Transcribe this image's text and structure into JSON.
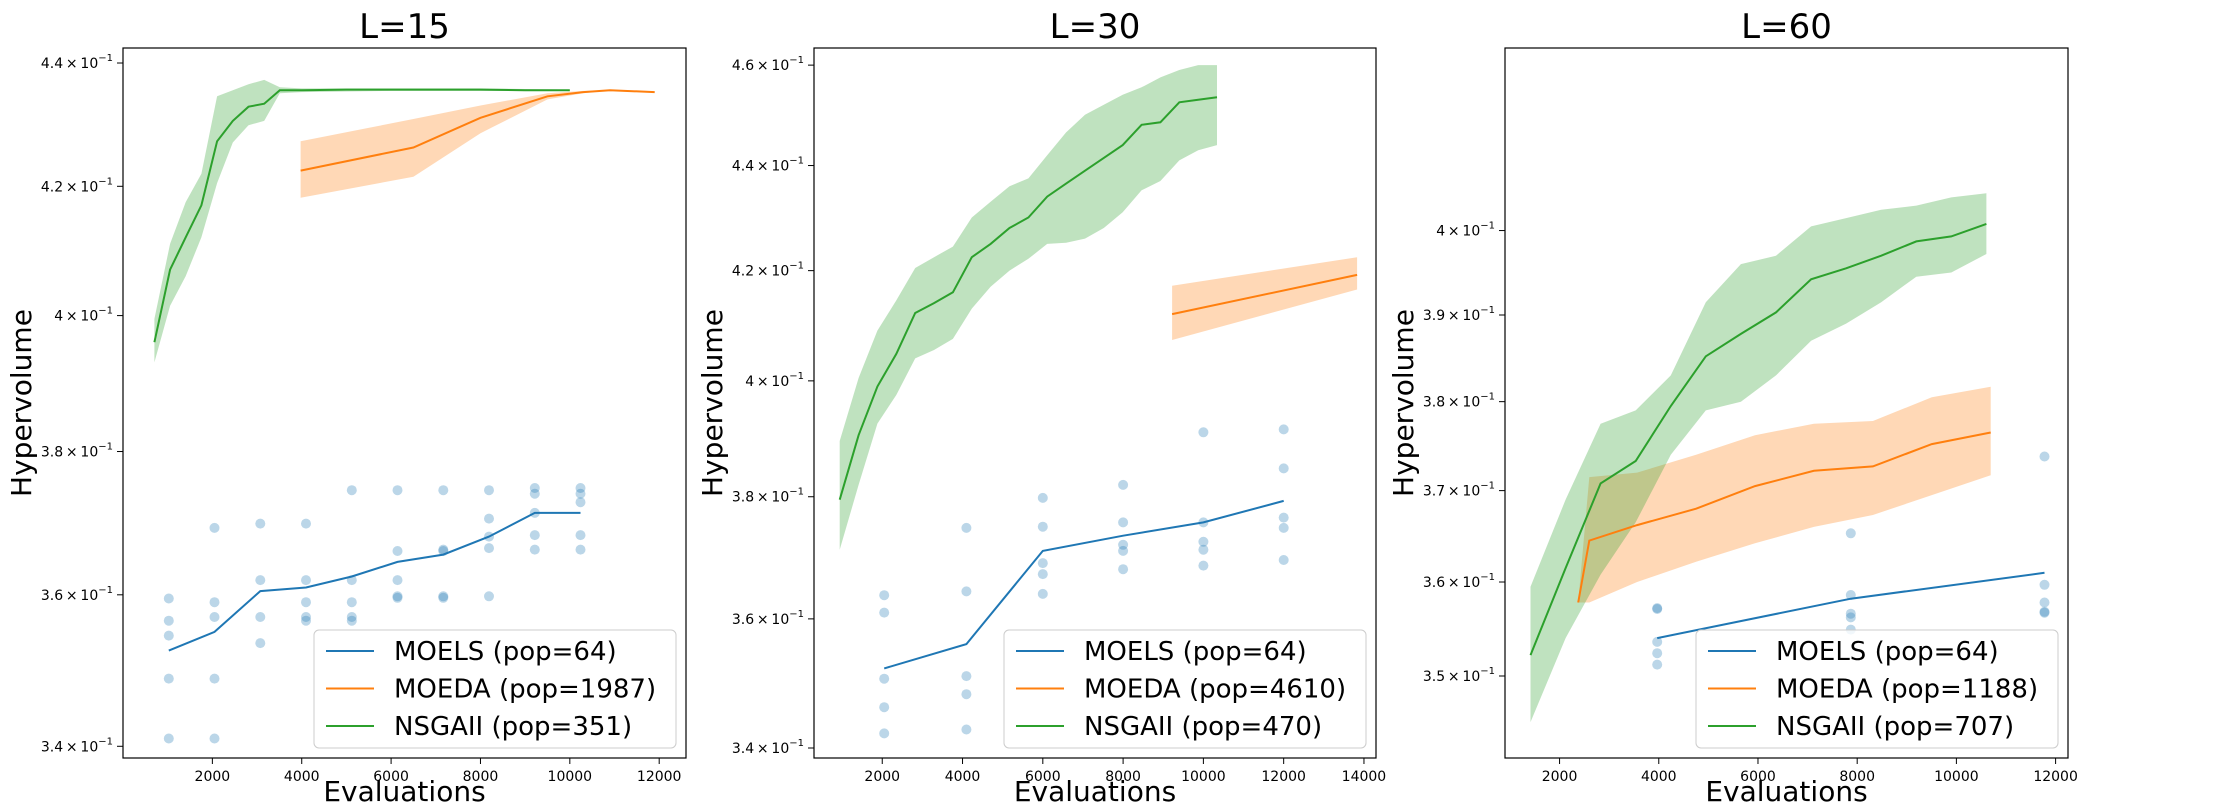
{
  "chart_data": [
    {
      "type": "line",
      "title": "L=15",
      "xlabel": "Evaluations",
      "ylabel": "Hypervolume",
      "yscale": "log",
      "xlim": [
        0,
        12600
      ],
      "ylim": [
        0.3385,
        0.4425
      ],
      "xticks": [
        2000,
        4000,
        6000,
        8000,
        10000,
        12000
      ],
      "yticks": [
        {
          "value": 0.34,
          "label_base": "3.4 × 10",
          "label_exp": "−1"
        },
        {
          "value": 0.36,
          "label_base": "3.6 × 10",
          "label_exp": "−1"
        },
        {
          "value": 0.38,
          "label_base": "3.8 × 10",
          "label_exp": "−1"
        },
        {
          "value": 0.4,
          "label_base": "4 × 10",
          "label_exp": "−1"
        },
        {
          "value": 0.42,
          "label_base": "4.2 × 10",
          "label_exp": "−1"
        },
        {
          "value": 0.44,
          "label_base": "4.4 × 10",
          "label_exp": "−1"
        }
      ],
      "legend_placement": "lower right",
      "series": [
        {
          "name": "MOELS (pop=64)",
          "color": "#1f77b4",
          "x": [
            1024,
            2048,
            3072,
            4096,
            5120,
            6144,
            7168,
            8192,
            9216,
            10240
          ],
          "y": [
            0.3525,
            0.355,
            0.3605,
            0.361,
            0.3625,
            0.3645,
            0.3655,
            0.368,
            0.3713,
            0.3713
          ],
          "points": [
            [
              1024,
              0.3595
            ],
            [
              1024,
              0.3565
            ],
            [
              1024,
              0.3545
            ],
            [
              1024,
              0.3488
            ],
            [
              1024,
              0.341
            ],
            [
              2048,
              0.3692
            ],
            [
              2048,
              0.359
            ],
            [
              2048,
              0.357
            ],
            [
              2048,
              0.3488
            ],
            [
              2048,
              0.341
            ],
            [
              3072,
              0.3698
            ],
            [
              3072,
              0.362
            ],
            [
              3072,
              0.357
            ],
            [
              3072,
              0.3535
            ],
            [
              4096,
              0.3698
            ],
            [
              4096,
              0.362
            ],
            [
              4096,
              0.359
            ],
            [
              4096,
              0.357
            ],
            [
              4096,
              0.3565
            ],
            [
              5120,
              0.3745
            ],
            [
              5120,
              0.362
            ],
            [
              5120,
              0.359
            ],
            [
              5120,
              0.357
            ],
            [
              5120,
              0.3565
            ],
            [
              6144,
              0.3745
            ],
            [
              6144,
              0.366
            ],
            [
              6144,
              0.362
            ],
            [
              6144,
              0.3598
            ],
            [
              6144,
              0.3596
            ],
            [
              7168,
              0.3745
            ],
            [
              7168,
              0.3662
            ],
            [
              7168,
              0.366
            ],
            [
              7168,
              0.3598
            ],
            [
              7168,
              0.3596
            ],
            [
              8192,
              0.3745
            ],
            [
              8192,
              0.3705
            ],
            [
              8192,
              0.368
            ],
            [
              8192,
              0.3664
            ],
            [
              8192,
              0.3598
            ],
            [
              9216,
              0.3748
            ],
            [
              9216,
              0.374
            ],
            [
              9216,
              0.3713
            ],
            [
              9216,
              0.3682
            ],
            [
              9216,
              0.3662
            ],
            [
              10240,
              0.3748
            ],
            [
              10240,
              0.374
            ],
            [
              10240,
              0.3728
            ],
            [
              10240,
              0.3682
            ],
            [
              10240,
              0.3662
            ]
          ]
        },
        {
          "name": "MOEDA (pop=1987)",
          "color": "#ff7f0e",
          "x": [
            3974,
            6500,
            8000,
            9500,
            10300,
            10900,
            11900
          ],
          "y": [
            0.4225,
            0.4262,
            0.431,
            0.4345,
            0.4352,
            0.4355,
            0.4352
          ],
          "lower": [
            0.4182,
            0.4215,
            0.4285,
            0.434,
            0.435,
            0.4355,
            0.4352
          ],
          "upper": [
            0.4272,
            0.4308,
            0.433,
            0.435,
            0.4354,
            0.4355,
            0.4352
          ]
        },
        {
          "name": "NSGAII (pop=351)",
          "color": "#2ca02c",
          "x": [
            702,
            1053,
            1404,
            1755,
            2106,
            2457,
            2808,
            3159,
            3510,
            4000,
            5000,
            6000,
            7000,
            8000,
            9000,
            10000
          ],
          "y": [
            0.396,
            0.407,
            0.412,
            0.417,
            0.4272,
            0.4305,
            0.4328,
            0.4333,
            0.4355,
            0.4355,
            0.4356,
            0.4356,
            0.4356,
            0.4356,
            0.4355,
            0.4355
          ],
          "lower": [
            0.393,
            0.4015,
            0.406,
            0.412,
            0.4205,
            0.427,
            0.4298,
            0.4305,
            0.435,
            0.4352,
            0.4353,
            0.4354,
            0.4354,
            0.4354,
            0.4354,
            0.4354
          ],
          "upper": [
            0.3995,
            0.411,
            0.4175,
            0.422,
            0.4345,
            0.4355,
            0.4365,
            0.4372,
            0.436,
            0.4358,
            0.4358,
            0.4358,
            0.4358,
            0.4358,
            0.4357,
            0.4356
          ]
        }
      ]
    },
    {
      "type": "line",
      "title": "L=30",
      "xlabel": "Evaluations",
      "ylabel": "Hypervolume",
      "yscale": "log",
      "xlim": [
        300,
        14300
      ],
      "ylim": [
        0.3385,
        0.4635
      ],
      "xticks": [
        2000,
        4000,
        6000,
        8000,
        10000,
        12000,
        14000
      ],
      "yticks": [
        {
          "value": 0.34,
          "label_base": "3.4 × 10",
          "label_exp": "−1"
        },
        {
          "value": 0.36,
          "label_base": "3.6 × 10",
          "label_exp": "−1"
        },
        {
          "value": 0.38,
          "label_base": "3.8 × 10",
          "label_exp": "−1"
        },
        {
          "value": 0.4,
          "label_base": "4 × 10",
          "label_exp": "−1"
        },
        {
          "value": 0.42,
          "label_base": "4.2 × 10",
          "label_exp": "−1"
        },
        {
          "value": 0.44,
          "label_base": "4.4 × 10",
          "label_exp": "−1"
        },
        {
          "value": 0.46,
          "label_base": "4.6 × 10",
          "label_exp": "−1"
        }
      ],
      "legend_placement": "lower right",
      "series": [
        {
          "name": "MOELS (pop=64)",
          "color": "#1f77b4",
          "x": [
            2048,
            4096,
            6000,
            8000,
            10000,
            12000
          ],
          "y": [
            0.3522,
            0.356,
            0.371,
            0.3735,
            0.3757,
            0.3793
          ],
          "points": [
            [
              2048,
              0.3638
            ],
            [
              2048,
              0.361
            ],
            [
              2048,
              0.3506
            ],
            [
              2048,
              0.3462
            ],
            [
              2048,
              0.3422
            ],
            [
              4096,
              0.3748
            ],
            [
              4096,
              0.3644
            ],
            [
              4096,
              0.351
            ],
            [
              4096,
              0.3482
            ],
            [
              4096,
              0.3428
            ],
            [
              6000,
              0.3798
            ],
            [
              6000,
              0.375
            ],
            [
              6000,
              0.369
            ],
            [
              6000,
              0.3672
            ],
            [
              6000,
              0.364
            ],
            [
              8000,
              0.382
            ],
            [
              8000,
              0.3757
            ],
            [
              8000,
              0.372
            ],
            [
              8000,
              0.371
            ],
            [
              8000,
              0.368
            ],
            [
              10000,
              0.391
            ],
            [
              10000,
              0.3757
            ],
            [
              10000,
              0.3725
            ],
            [
              10000,
              0.3712
            ],
            [
              10000,
              0.3686
            ],
            [
              12000,
              0.3915
            ],
            [
              12000,
              0.3848
            ],
            [
              12000,
              0.3765
            ],
            [
              12000,
              0.3748
            ],
            [
              12000,
              0.3695
            ]
          ]
        },
        {
          "name": "MOEDA (pop=4610)",
          "color": "#ff7f0e",
          "x": [
            9220,
            13830
          ],
          "y": [
            0.412,
            0.4192
          ],
          "lower": [
            0.4073,
            0.4165
          ],
          "upper": [
            0.4172,
            0.4225
          ]
        },
        {
          "name": "NSGAII (pop=470)",
          "color": "#2ca02c",
          "x": [
            940,
            1410,
            1880,
            2350,
            2820,
            3290,
            3760,
            4230,
            4700,
            5170,
            5640,
            6110,
            6580,
            7050,
            7520,
            7990,
            8460,
            8930,
            9400,
            9870,
            10340
          ],
          "y": [
            0.3795,
            0.3905,
            0.399,
            0.4048,
            0.4122,
            0.414,
            0.416,
            0.4225,
            0.425,
            0.428,
            0.43,
            0.434,
            0.4365,
            0.439,
            0.4415,
            0.444,
            0.448,
            0.4485,
            0.4525,
            0.453,
            0.4535
          ],
          "lower": [
            0.3712,
            0.382,
            0.3925,
            0.3975,
            0.404,
            0.4055,
            0.4075,
            0.413,
            0.417,
            0.42,
            0.4222,
            0.425,
            0.4252,
            0.426,
            0.428,
            0.431,
            0.4352,
            0.437,
            0.441,
            0.443,
            0.444
          ],
          "upper": [
            0.3895,
            0.4005,
            0.409,
            0.4145,
            0.4205,
            0.4225,
            0.4245,
            0.43,
            0.433,
            0.436,
            0.4375,
            0.442,
            0.4465,
            0.45,
            0.452,
            0.454,
            0.4555,
            0.4575,
            0.459,
            0.46,
            0.46
          ]
        }
      ]
    },
    {
      "type": "line",
      "title": "L=60",
      "xlabel": "Evaluations",
      "ylabel": "Hypervolume",
      "yscale": "log",
      "xlim": [
        900,
        12250
      ],
      "ylim": [
        0.3415,
        0.4225
      ],
      "xticks": [
        2000,
        4000,
        6000,
        8000,
        10000,
        12000
      ],
      "yticks": [
        {
          "value": 0.35,
          "label_base": "3.5 × 10",
          "label_exp": "−1"
        },
        {
          "value": 0.36,
          "label_base": "3.6 × 10",
          "label_exp": "−1"
        },
        {
          "value": 0.37,
          "label_base": "3.7 × 10",
          "label_exp": "−1"
        },
        {
          "value": 0.38,
          "label_base": "3.8 × 10",
          "label_exp": "−1"
        },
        {
          "value": 0.39,
          "label_base": "3.9 × 10",
          "label_exp": "−1"
        },
        {
          "value": 0.4,
          "label_base": "4 × 10",
          "label_exp": "−1"
        }
      ],
      "legend_placement": "lower right",
      "series": [
        {
          "name": "MOELS (pop=64)",
          "color": "#1f77b4",
          "x": [
            3968,
            7872,
            11776
          ],
          "y": [
            0.354,
            0.3582,
            0.361
          ],
          "points": [
            [
              3968,
              0.3572
            ],
            [
              3968,
              0.3571
            ],
            [
              3968,
              0.3536
            ],
            [
              3968,
              0.3524
            ],
            [
              3968,
              0.3512
            ],
            [
              7872,
              0.3653
            ],
            [
              7872,
              0.3586
            ],
            [
              7872,
              0.3566
            ],
            [
              7872,
              0.3562
            ],
            [
              7872,
              0.3549
            ],
            [
              11776,
              0.3738
            ],
            [
              11776,
              0.3597
            ],
            [
              11776,
              0.3578
            ],
            [
              11776,
              0.3568
            ],
            [
              11776,
              0.3567
            ]
          ]
        },
        {
          "name": "MOEDA (pop=1188)",
          "color": "#ff7f0e",
          "x": [
            2376,
            2600,
            3564,
            4752,
            5940,
            7128,
            8316,
            9504,
            10692
          ],
          "y": [
            0.3578,
            0.3645,
            0.3662,
            0.368,
            0.3705,
            0.3722,
            0.3727,
            0.3752,
            0.3765
          ],
          "lower": [
            0.3578,
            0.3578,
            0.36,
            0.3622,
            0.3642,
            0.366,
            0.3673,
            0.3695,
            0.3717
          ],
          "upper": [
            0.3578,
            0.3715,
            0.372,
            0.374,
            0.3762,
            0.3775,
            0.3778,
            0.3805,
            0.3817
          ]
        },
        {
          "name": "NSGAII (pop=707)",
          "color": "#2ca02c",
          "x": [
            1414,
            2121,
            2828,
            3535,
            4242,
            4949,
            5656,
            6363,
            7070,
            7777,
            8484,
            9191,
            9898,
            10605
          ],
          "y": [
            0.3522,
            0.3615,
            0.3708,
            0.3733,
            0.3795,
            0.3852,
            0.3878,
            0.3903,
            0.3942,
            0.3955,
            0.397,
            0.3987,
            0.3993,
            0.4008
          ],
          "lower": [
            0.3452,
            0.354,
            0.3608,
            0.3665,
            0.374,
            0.379,
            0.38,
            0.383,
            0.387,
            0.389,
            0.3915,
            0.3945,
            0.395,
            0.3972
          ],
          "upper": [
            0.3595,
            0.369,
            0.3775,
            0.379,
            0.383,
            0.3915,
            0.396,
            0.397,
            0.4005,
            0.4015,
            0.4025,
            0.403,
            0.404,
            0.4045
          ]
        }
      ]
    }
  ]
}
